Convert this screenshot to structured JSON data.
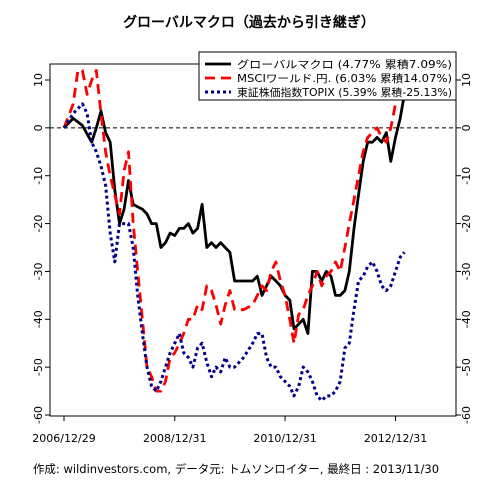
{
  "chart_data": {
    "type": "line",
    "title": "グローバルマクロ（過去から引き継ぎ）",
    "caption": "作成: wildinvestors.com, データ元: トムソンロイター, 最終日 : 2013/11/30",
    "xlabel": "",
    "ylabel": "",
    "x_ticks": [
      "2006/12/29",
      "2008/12/31",
      "2010/12/31",
      "2012/12/31"
    ],
    "x_range": [
      "2006-12-29",
      "2013-11-30"
    ],
    "ylim": [
      -60,
      14
    ],
    "y_ticks": [
      10,
      0,
      -10,
      -20,
      -30,
      -40,
      -50,
      -60
    ],
    "y_tick_labels": [
      "10",
      "0",
      "-10",
      "-20",
      "-30",
      "-40",
      "-50",
      "-60"
    ],
    "reference_line": {
      "y": 0,
      "style": "dashed"
    },
    "legend_position": "top-right",
    "series": [
      {
        "name": "グローバルマクロ (4.77% 累積7.09%)",
        "color": "#000000",
        "style": "solid",
        "points": [
          [
            "2006-12-29",
            0
          ],
          [
            "2007-02-28",
            2
          ],
          [
            "2007-04-30",
            0.5
          ],
          [
            "2007-06-30",
            -3
          ],
          [
            "2007-07-31",
            0
          ],
          [
            "2007-08-31",
            3.5
          ],
          [
            "2007-09-30",
            -1
          ],
          [
            "2007-10-31",
            -3
          ],
          [
            "2007-11-30",
            -13
          ],
          [
            "2007-12-31",
            -20
          ],
          [
            "2008-01-31",
            -17
          ],
          [
            "2008-02-29",
            -11
          ],
          [
            "2008-03-31",
            -16
          ],
          [
            "2008-04-30",
            -16.5
          ],
          [
            "2008-05-31",
            -17
          ],
          [
            "2008-06-30",
            -18
          ],
          [
            "2008-07-31",
            -20
          ],
          [
            "2008-08-31",
            -20
          ],
          [
            "2008-09-30",
            -25
          ],
          [
            "2008-10-31",
            -24
          ],
          [
            "2008-11-30",
            -22
          ],
          [
            "2008-12-31",
            -22.5
          ],
          [
            "2009-01-31",
            -21
          ],
          [
            "2009-02-28",
            -21
          ],
          [
            "2009-03-31",
            -20
          ],
          [
            "2009-04-30",
            -22
          ],
          [
            "2009-05-31",
            -21
          ],
          [
            "2009-06-30",
            -16
          ],
          [
            "2009-07-31",
            -25
          ],
          [
            "2009-08-31",
            -24
          ],
          [
            "2009-09-30",
            -25
          ],
          [
            "2009-10-31",
            -24
          ],
          [
            "2009-11-30",
            -25
          ],
          [
            "2009-12-31",
            -26
          ],
          [
            "2010-01-31",
            -32
          ],
          [
            "2010-03-31",
            -32
          ],
          [
            "2010-05-31",
            -32
          ],
          [
            "2010-06-30",
            -31
          ],
          [
            "2010-07-31",
            -35
          ],
          [
            "2010-08-31",
            -33
          ],
          [
            "2010-09-30",
            -31
          ],
          [
            "2010-10-31",
            -32
          ],
          [
            "2010-11-30",
            -33
          ],
          [
            "2010-12-31",
            -35
          ],
          [
            "2011-01-31",
            -36
          ],
          [
            "2011-02-28",
            -42
          ],
          [
            "2011-03-31",
            -41
          ],
          [
            "2011-04-30",
            -40
          ],
          [
            "2011-05-31",
            -43
          ],
          [
            "2011-06-30",
            -30
          ],
          [
            "2011-07-31",
            -30
          ],
          [
            "2011-08-31",
            -32
          ],
          [
            "2011-09-30",
            -30
          ],
          [
            "2011-10-31",
            -31
          ],
          [
            "2011-11-30",
            -35
          ],
          [
            "2011-12-31",
            -35
          ],
          [
            "2012-01-31",
            -34
          ],
          [
            "2012-02-29",
            -30
          ],
          [
            "2012-03-31",
            -21
          ],
          [
            "2012-04-30",
            -14
          ],
          [
            "2012-05-31",
            -7
          ],
          [
            "2012-06-30",
            -3
          ],
          [
            "2012-07-31",
            -3
          ],
          [
            "2012-08-31",
            -2
          ],
          [
            "2012-09-30",
            -3
          ],
          [
            "2012-10-31",
            -1
          ],
          [
            "2012-11-30",
            -7
          ],
          [
            "2012-12-31",
            -2
          ],
          [
            "2013-01-31",
            2
          ],
          [
            "2013-02-28",
            7
          ]
        ]
      },
      {
        "name": "MSCIワールド.円. (6.03% 累積14.07%)",
        "color": "#ff0000",
        "style": "dashed",
        "points": [
          [
            "2006-12-29",
            0
          ],
          [
            "2007-02-28",
            5
          ],
          [
            "2007-03-31",
            12
          ],
          [
            "2007-04-30",
            12
          ],
          [
            "2007-05-31",
            7
          ],
          [
            "2007-06-30",
            10
          ],
          [
            "2007-07-31",
            12
          ],
          [
            "2007-08-31",
            3
          ],
          [
            "2007-09-30",
            -5
          ],
          [
            "2007-10-31",
            -10
          ],
          [
            "2007-11-30",
            -14
          ],
          [
            "2007-12-31",
            -18
          ],
          [
            "2008-01-31",
            -9
          ],
          [
            "2008-02-29",
            -5
          ],
          [
            "2008-03-31",
            -20
          ],
          [
            "2008-04-30",
            -30
          ],
          [
            "2008-05-31",
            -40
          ],
          [
            "2008-06-30",
            -50
          ],
          [
            "2008-07-31",
            -52
          ],
          [
            "2008-08-31",
            -55
          ],
          [
            "2008-09-30",
            -55
          ],
          [
            "2008-10-31",
            -53
          ],
          [
            "2008-11-30",
            -48
          ],
          [
            "2008-12-31",
            -47
          ],
          [
            "2009-01-31",
            -45
          ],
          [
            "2009-02-28",
            -43
          ],
          [
            "2009-03-31",
            -40
          ],
          [
            "2009-04-30",
            -40
          ],
          [
            "2009-05-31",
            -37
          ],
          [
            "2009-06-30",
            -38
          ],
          [
            "2009-07-31",
            -33
          ],
          [
            "2009-08-31",
            -34
          ],
          [
            "2009-09-30",
            -37
          ],
          [
            "2009-10-31",
            -41
          ],
          [
            "2009-11-30",
            -37
          ],
          [
            "2009-12-31",
            -34
          ],
          [
            "2010-01-31",
            -38
          ],
          [
            "2010-03-31",
            -38
          ],
          [
            "2010-05-31",
            -37
          ],
          [
            "2010-06-30",
            -35
          ],
          [
            "2010-07-31",
            -33
          ],
          [
            "2010-08-31",
            -34
          ],
          [
            "2010-09-30",
            -30
          ],
          [
            "2010-10-31",
            -28
          ],
          [
            "2010-11-30",
            -32
          ],
          [
            "2010-12-31",
            -35
          ],
          [
            "2011-01-31",
            -40
          ],
          [
            "2011-02-28",
            -45
          ],
          [
            "2011-03-31",
            -39
          ],
          [
            "2011-04-30",
            -38
          ],
          [
            "2011-05-31",
            -35
          ],
          [
            "2011-06-30",
            -33
          ],
          [
            "2011-07-31",
            -30
          ],
          [
            "2011-08-31",
            -33
          ],
          [
            "2011-09-30",
            -31
          ],
          [
            "2011-10-31",
            -30
          ],
          [
            "2011-11-30",
            -28
          ],
          [
            "2011-12-31",
            -30
          ],
          [
            "2012-01-31",
            -25
          ],
          [
            "2012-02-29",
            -20
          ],
          [
            "2012-03-31",
            -15
          ],
          [
            "2012-04-30",
            -10
          ],
          [
            "2012-05-31",
            -5
          ],
          [
            "2012-06-30",
            -2
          ],
          [
            "2012-07-31",
            -1
          ],
          [
            "2012-08-31",
            0
          ],
          [
            "2012-09-30",
            -2
          ],
          [
            "2012-10-31",
            -3
          ],
          [
            "2012-11-30",
            0
          ],
          [
            "2012-12-31",
            5
          ],
          [
            "2013-01-31",
            9
          ],
          [
            "2013-02-28",
            14
          ]
        ]
      },
      {
        "name": "東証株価指数TOPIX (5.39% 累積-25.13%)",
        "color": "#00008b",
        "style": "dotted",
        "points": [
          [
            "2006-12-29",
            0
          ],
          [
            "2007-02-28",
            3
          ],
          [
            "2007-03-31",
            4
          ],
          [
            "2007-04-30",
            5
          ],
          [
            "2007-05-31",
            3
          ],
          [
            "2007-06-30",
            -3
          ],
          [
            "2007-07-31",
            -5
          ],
          [
            "2007-08-31",
            -8
          ],
          [
            "2007-09-30",
            -12
          ],
          [
            "2007-10-31",
            -22
          ],
          [
            "2007-11-30",
            -28
          ],
          [
            "2007-12-31",
            -20
          ],
          [
            "2008-01-31",
            -20
          ],
          [
            "2008-02-29",
            -20
          ],
          [
            "2008-03-31",
            -25
          ],
          [
            "2008-04-30",
            -35
          ],
          [
            "2008-05-31",
            -43
          ],
          [
            "2008-06-30",
            -50
          ],
          [
            "2008-07-31",
            -54
          ],
          [
            "2008-08-31",
            -55
          ],
          [
            "2008-09-30",
            -53
          ],
          [
            "2008-10-31",
            -50
          ],
          [
            "2008-11-30",
            -47
          ],
          [
            "2008-12-31",
            -45
          ],
          [
            "2009-01-31",
            -43
          ],
          [
            "2009-02-28",
            -47
          ],
          [
            "2009-03-31",
            -48
          ],
          [
            "2009-04-30",
            -50
          ],
          [
            "2009-05-31",
            -46
          ],
          [
            "2009-06-30",
            -45
          ],
          [
            "2009-07-31",
            -49
          ],
          [
            "2009-08-31",
            -52
          ],
          [
            "2009-09-30",
            -50
          ],
          [
            "2009-10-31",
            -51
          ],
          [
            "2009-11-30",
            -48
          ],
          [
            "2009-12-31",
            -50
          ],
          [
            "2010-01-31",
            -50
          ],
          [
            "2010-03-31",
            -48
          ],
          [
            "2010-05-31",
            -45
          ],
          [
            "2010-06-30",
            -43
          ],
          [
            "2010-07-31",
            -43
          ],
          [
            "2010-08-31",
            -48
          ],
          [
            "2010-09-30",
            -50
          ],
          [
            "2010-10-31",
            -50
          ],
          [
            "2010-11-30",
            -52
          ],
          [
            "2010-12-31",
            -53
          ],
          [
            "2011-01-31",
            -54
          ],
          [
            "2011-02-28",
            -56
          ],
          [
            "2011-03-31",
            -54
          ],
          [
            "2011-04-30",
            -50
          ],
          [
            "2011-05-31",
            -51
          ],
          [
            "2011-06-30",
            -53
          ],
          [
            "2011-07-31",
            -56
          ],
          [
            "2011-08-31",
            -57
          ],
          [
            "2011-09-30",
            -56
          ],
          [
            "2011-10-31",
            -56
          ],
          [
            "2011-11-30",
            -55
          ],
          [
            "2011-12-31",
            -53
          ],
          [
            "2012-01-31",
            -46
          ],
          [
            "2012-02-29",
            -45
          ],
          [
            "2012-03-31",
            -38
          ],
          [
            "2012-04-30",
            -32
          ],
          [
            "2012-05-31",
            -31
          ],
          [
            "2012-06-30",
            -29
          ],
          [
            "2012-07-31",
            -28
          ],
          [
            "2012-08-31",
            -30
          ],
          [
            "2012-09-30",
            -33
          ],
          [
            "2012-10-31",
            -34
          ],
          [
            "2012-11-30",
            -33
          ],
          [
            "2012-12-31",
            -30
          ],
          [
            "2013-01-31",
            -27
          ],
          [
            "2013-02-28",
            -26
          ]
        ]
      }
    ]
  }
}
